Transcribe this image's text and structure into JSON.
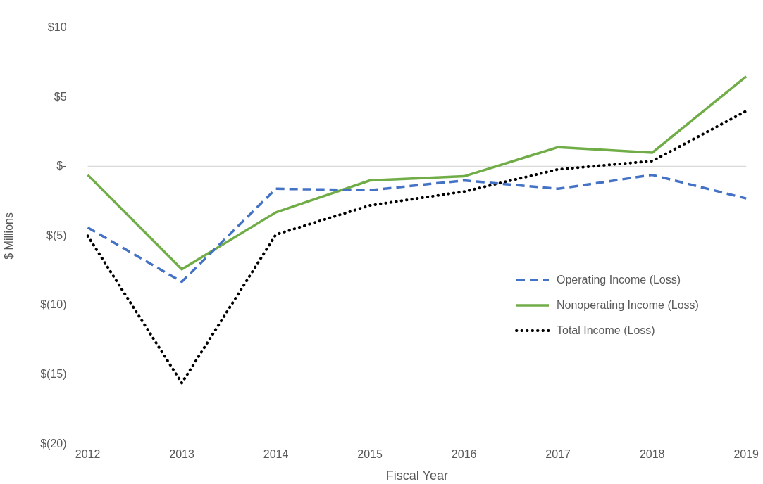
{
  "chart_data": {
    "type": "line",
    "xlabel": "Fiscal Year",
    "ylabel": "$ Millions",
    "categories": [
      "2012",
      "2013",
      "2014",
      "2015",
      "2016",
      "2017",
      "2018",
      "2019"
    ],
    "series": [
      {
        "name": "Operating Income (Loss)",
        "color": "#4472c4",
        "line_style": "dashed",
        "values": [
          -4.4,
          -8.3,
          -1.6,
          -1.7,
          -1.0,
          -1.6,
          -0.6,
          -2.3
        ]
      },
      {
        "name": "Nonoperating Income (Loss)",
        "color": "#70ad47",
        "line_style": "solid",
        "values": [
          -0.6,
          -7.4,
          -3.3,
          -1.0,
          -0.7,
          1.4,
          1.0,
          6.5
        ]
      },
      {
        "name": "Total Income (Loss)",
        "color": "#000000",
        "line_style": "dotted",
        "values": [
          -5.0,
          -15.6,
          -4.9,
          -2.8,
          -1.8,
          -0.2,
          0.4,
          4.0
        ]
      }
    ],
    "ylim": [
      -20,
      10
    ],
    "yticks": [
      {
        "value": -20,
        "label": "$(20)"
      },
      {
        "value": -15,
        "label": "$(15)"
      },
      {
        "value": -10,
        "label": "$(10)"
      },
      {
        "value": -5,
        "label": "$(5)"
      },
      {
        "value": 0,
        "label": "$-"
      },
      {
        "value": 5,
        "label": "$5"
      },
      {
        "value": 10,
        "label": "$10"
      }
    ],
    "ref_lines": [
      {
        "axis": "y",
        "value": 0,
        "color": "#d9d9d9"
      }
    ],
    "grid": false,
    "legend": "right",
    "marker": "none"
  }
}
